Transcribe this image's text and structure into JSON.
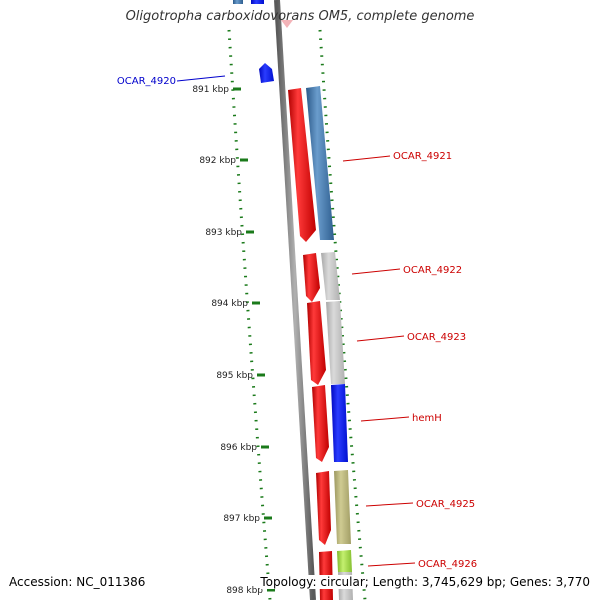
{
  "title": "Oligotropha carboxidovorans OM5, complete genome",
  "footer": {
    "accession": "Accession: NC_011386",
    "topology": "Topology: circular; Length: 3,745,629 bp; Genes: 3,770"
  },
  "colors": {
    "cds_red": "#e8141a",
    "blue_gene": "#3f72a8",
    "hemH_blue": "#1a20f0",
    "grey_gene": "#c0c0c0",
    "olive_gene": "#b8b47a",
    "lime_gene": "#9ed64a",
    "label_red": "#cc0000",
    "label_blue": "#0000cc",
    "tick_green": "#1a7a1a",
    "backbone": "#808080"
  },
  "scale_ticks": [
    "891 kbp",
    "892 kbp",
    "893 kbp",
    "894 kbp",
    "895 kbp",
    "896 kbp",
    "897 kbp",
    "898 kbp"
  ],
  "gene_labels": [
    {
      "name": "OCAR_4920",
      "color": "blue"
    },
    {
      "name": "OCAR_4921",
      "color": "red"
    },
    {
      "name": "OCAR_4922",
      "color": "red"
    },
    {
      "name": "OCAR_4923",
      "color": "red"
    },
    {
      "name": "hemH",
      "color": "red"
    },
    {
      "name": "OCAR_4925",
      "color": "red"
    },
    {
      "name": "OCAR_4926",
      "color": "red"
    }
  ]
}
